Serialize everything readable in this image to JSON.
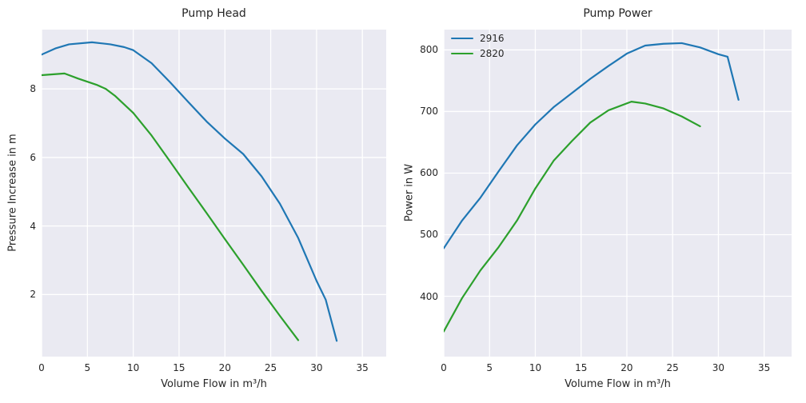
{
  "figure": {
    "background": "#ffffff",
    "axes_background": "#eaeaf2",
    "grid_color": "#ffffff",
    "text_color": "#262626",
    "style": "seaborn-darkgrid"
  },
  "chart_data": [
    {
      "type": "line",
      "title": "Pump Head",
      "xlabel": "Volume Flow in m³/h",
      "ylabel": "Pressure Increase in m",
      "xlim": [
        0,
        37.6
      ],
      "ylim": [
        0.19,
        9.73
      ],
      "xticks": [
        0,
        5,
        10,
        15,
        20,
        25,
        30,
        35
      ],
      "yticks": [
        2,
        4,
        6,
        8
      ],
      "grid": true,
      "legend": null,
      "series": [
        {
          "name": "2916",
          "color": "#1f77b4",
          "x": [
            0,
            1.5,
            3,
            5.5,
            7.5,
            9,
            10,
            12,
            14,
            16,
            18,
            20,
            22,
            24,
            26,
            28,
            30,
            31,
            32.2
          ],
          "y": [
            9.0,
            9.18,
            9.3,
            9.36,
            9.3,
            9.22,
            9.13,
            8.75,
            8.2,
            7.62,
            7.05,
            6.55,
            6.1,
            5.45,
            4.65,
            3.65,
            2.4,
            1.85,
            0.65
          ]
        },
        {
          "name": "2820",
          "color": "#2ca02c",
          "x": [
            0,
            2.5,
            4,
            6,
            7,
            8,
            10,
            12,
            14,
            16,
            18,
            20,
            22,
            24,
            26,
            28
          ],
          "y": [
            8.4,
            8.45,
            8.3,
            8.12,
            8.0,
            7.8,
            7.3,
            6.64,
            5.89,
            5.13,
            4.38,
            3.62,
            2.87,
            2.11,
            1.38,
            0.67
          ]
        }
      ]
    },
    {
      "type": "line",
      "title": "Pump Power",
      "xlabel": "Volume Flow in m³/h",
      "ylabel": "Power in W",
      "xlim": [
        0,
        38.0
      ],
      "ylim": [
        302,
        833
      ],
      "xticks": [
        0,
        5,
        10,
        15,
        20,
        25,
        30,
        35
      ],
      "yticks": [
        400,
        500,
        600,
        700,
        800
      ],
      "grid": true,
      "legend": {
        "position": "upper left",
        "entries": [
          "2916",
          "2820"
        ]
      },
      "series": [
        {
          "name": "2916",
          "color": "#1f77b4",
          "x": [
            0,
            2,
            4,
            6,
            8,
            10,
            12,
            14,
            16,
            18,
            20,
            22,
            24,
            26,
            28,
            30,
            31,
            32.2
          ],
          "y": [
            478,
            523,
            560,
            603,
            645,
            679,
            707,
            730,
            753,
            774,
            794,
            807,
            810,
            811,
            804,
            793,
            789,
            719
          ]
        },
        {
          "name": "2820",
          "color": "#2ca02c",
          "x": [
            0,
            2,
            4,
            6,
            8,
            10,
            12,
            14,
            16,
            18,
            20.5,
            22,
            24,
            26,
            28
          ],
          "y": [
            343,
            397,
            442,
            480,
            523,
            575,
            620,
            652,
            682,
            702,
            716,
            713,
            705,
            692,
            676
          ]
        }
      ]
    }
  ]
}
